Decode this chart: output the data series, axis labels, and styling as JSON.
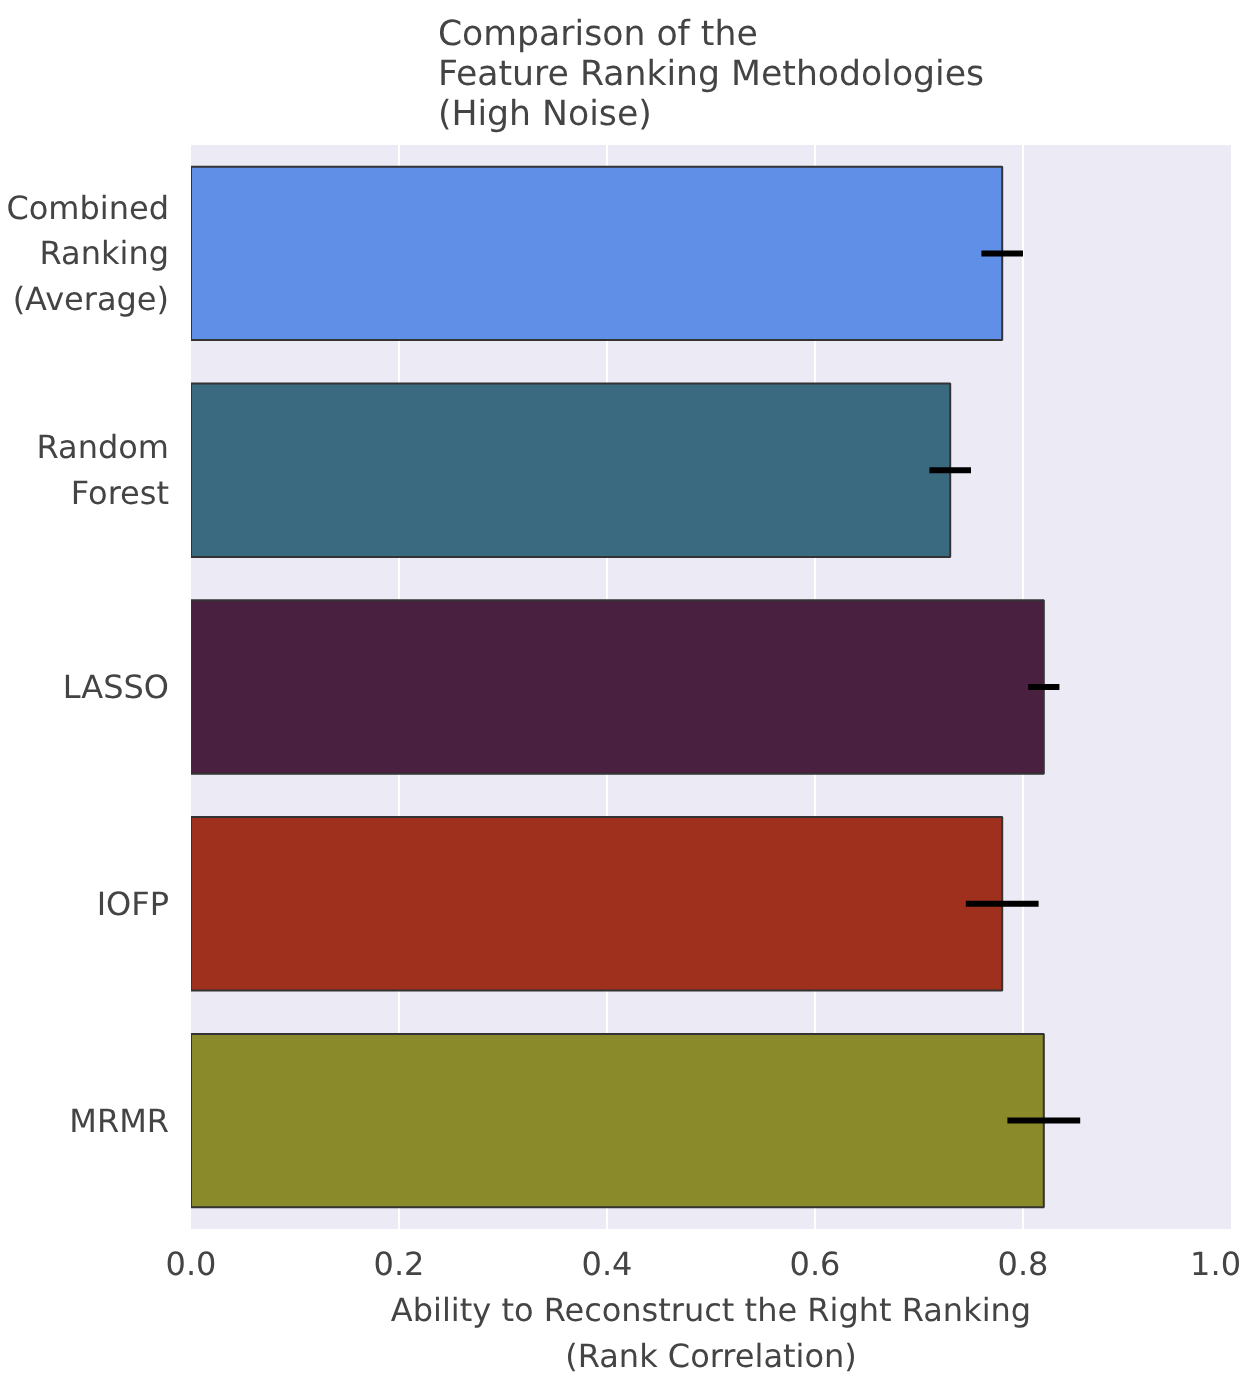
{
  "chart_data": {
    "type": "bar",
    "orientation": "horizontal",
    "title": "Comparison of the\nFeature Ranking Methodologies\n(High Noise)",
    "xlabel": "Ability to Reconstruct the Right Ranking\n(Rank Correlation)",
    "categories": [
      "Combined\nRanking\n(Average)",
      "Random\nForest",
      "LASSO",
      "IOFP",
      "MRMR"
    ],
    "values": [
      0.78,
      0.73,
      0.82,
      0.78,
      0.82
    ],
    "errors": [
      0.02,
      0.02,
      0.015,
      0.035,
      0.035
    ],
    "colors": [
      "#5f8fe6",
      "#3a6a80",
      "#4a2040",
      "#a0301e",
      "#8a8a2a"
    ],
    "xlim": [
      0,
      1
    ],
    "xticks": [
      {
        "value": 0,
        "label": "0.0"
      },
      0.2,
      0.4,
      0.6,
      0.8,
      {
        "value": 1,
        "label": "1.0"
      }
    ],
    "grid": "x"
  }
}
